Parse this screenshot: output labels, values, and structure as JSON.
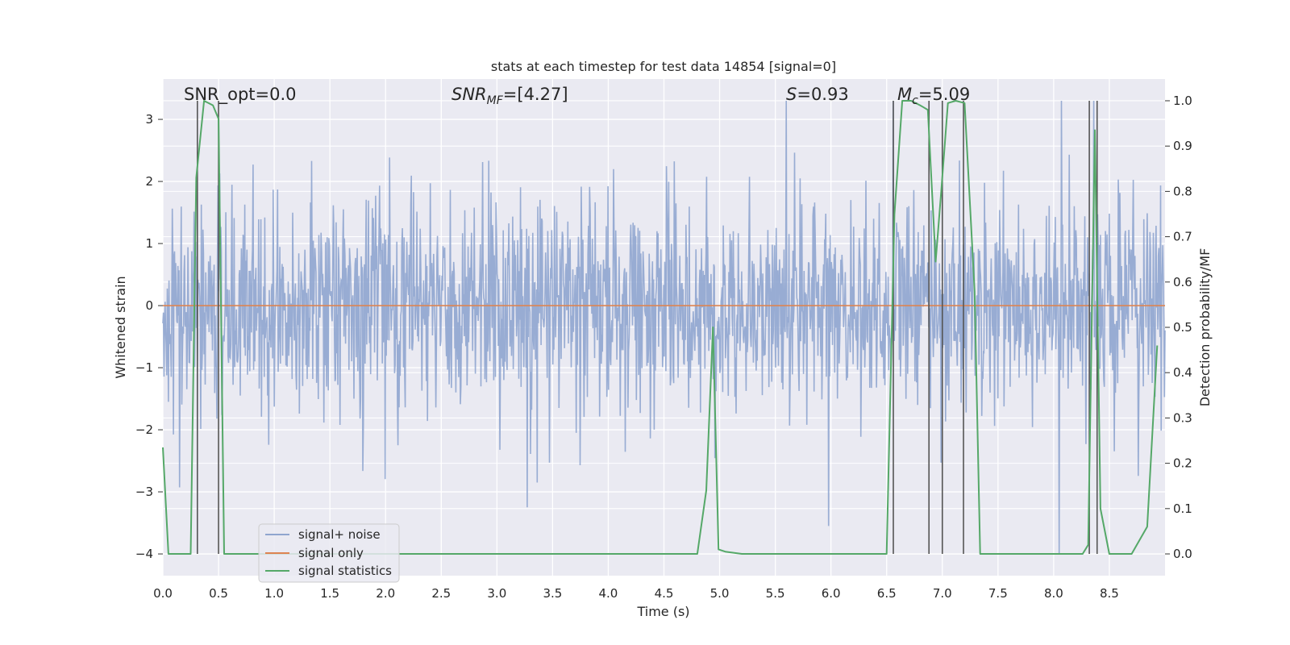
{
  "chart_data": {
    "type": "line",
    "title": "stats at each timestep for test data 14854 [signal=0]",
    "xlabel": "Time (s)",
    "ylabel": "Whitened strain",
    "y2label": "Detection probability/MF",
    "xlim": [
      0.0,
      9.0
    ],
    "ylim": [
      -4.35,
      3.65
    ],
    "y2lim": [
      -0.048,
      1.048
    ],
    "xticks": [
      "0.0",
      "0.5",
      "1.0",
      "1.5",
      "2.0",
      "2.5",
      "3.0",
      "3.5",
      "4.0",
      "4.5",
      "5.0",
      "5.5",
      "6.0",
      "6.5",
      "7.0",
      "7.5",
      "8.0",
      "8.5"
    ],
    "yticks": [
      "3",
      "2",
      "1",
      "0",
      "−1",
      "−2",
      "−3",
      "−4"
    ],
    "y2ticks": [
      "1.0",
      "0.9",
      "0.8",
      "0.7",
      "0.6",
      "0.5",
      "0.4",
      "0.3",
      "0.2",
      "0.1",
      "0.0"
    ],
    "grid": true,
    "legend_position": "lower-left",
    "annotations": {
      "snr_opt": "SNR_opt=0.0",
      "snr_mf_name": "SNR",
      "snr_mf_sub": "MF",
      "snr_mf_value": "=[4.27]",
      "s_name": "S",
      "s_value": "=0.93",
      "mc_name": "M",
      "mc_sub": "c",
      "mc_value": "=5.09"
    },
    "series": [
      {
        "name": "signal+ noise",
        "color": "#8fa5cf",
        "kind": "noise",
        "sample_count": 1800,
        "envelope_sigma": 0.85,
        "notable_peaks": [
          [
            3.27,
            -3.25
          ],
          [
            5.98,
            -3.55
          ],
          [
            8.05,
            -4.0
          ],
          [
            8.07,
            3.3
          ],
          [
            5.6,
            3.3
          ],
          [
            6.56,
            3.3
          ],
          [
            8.36,
            3.3
          ]
        ]
      },
      {
        "name": "signal only",
        "color": "#dd8452",
        "kind": "constant",
        "value": 0.0
      },
      {
        "name": "signal statistics",
        "color": "#55a868",
        "axis": "right",
        "x": [
          0.0,
          0.05,
          0.1,
          0.25,
          0.3,
          0.37,
          0.45,
          0.5,
          0.55,
          0.65,
          1.0,
          2.0,
          3.0,
          4.0,
          4.8,
          4.88,
          4.94,
          4.99,
          5.05,
          5.2,
          5.5,
          6.0,
          6.5,
          6.57,
          6.64,
          6.72,
          6.8,
          6.87,
          6.94,
          6.99,
          7.05,
          7.12,
          7.2,
          7.29,
          7.34,
          7.5,
          8.0,
          8.26,
          8.31,
          8.37,
          8.42,
          8.5,
          8.63,
          8.7,
          8.84,
          8.93
        ],
        "y": [
          0.235,
          0.0,
          0.0,
          0.0,
          0.83,
          1.0,
          0.99,
          0.96,
          0.0,
          0.0,
          0.0,
          0.0,
          0.0,
          0.0,
          0.0,
          0.14,
          0.5,
          0.01,
          0.005,
          0.0,
          0.0,
          0.0,
          0.0,
          0.75,
          1.0,
          1.0,
          0.99,
          0.98,
          0.645,
          0.8,
          0.995,
          1.0,
          0.995,
          0.58,
          0.0,
          0.0,
          0.0,
          0.0,
          0.02,
          0.935,
          0.1,
          0.0,
          0.0,
          0.0,
          0.06,
          0.46
        ]
      }
    ],
    "vertical_markers": {
      "color": "#555555",
      "x": [
        0.31,
        0.5,
        6.56,
        6.88,
        7.0,
        7.19,
        8.32,
        8.39
      ],
      "y_top": 1.0,
      "y_bottom": 0.0
    }
  }
}
